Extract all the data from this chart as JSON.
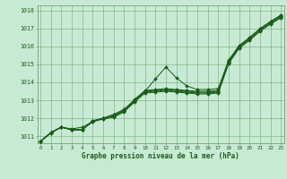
{
  "x_ticks": [
    0,
    1,
    2,
    3,
    4,
    5,
    6,
    7,
    8,
    9,
    10,
    11,
    12,
    13,
    14,
    15,
    16,
    17,
    18,
    19,
    20,
    21,
    22,
    23
  ],
  "xlim": [
    -0.3,
    23.3
  ],
  "ylim": [
    1010.6,
    1018.3
  ],
  "yticks": [
    1011,
    1012,
    1013,
    1014,
    1015,
    1016,
    1017,
    1018
  ],
  "background_color": "#c8ead4",
  "grid_color": "#5a9a5a",
  "line_color": "#1a5c1a",
  "marker": "D",
  "markersize": 2.0,
  "xlabel": "Graphe pression niveau de la mer (hPa)",
  "lines": [
    [
      1010.7,
      1011.2,
      1011.5,
      1011.4,
      1011.5,
      1011.8,
      1012.0,
      1012.2,
      1012.5,
      1013.0,
      1013.5,
      1014.2,
      1014.85,
      1014.25,
      1013.8,
      1013.6,
      1013.6,
      1013.65,
      1015.25,
      1016.05,
      1016.5,
      1017.0,
      1017.4,
      1017.75
    ],
    [
      1010.7,
      1011.2,
      1011.5,
      1011.35,
      1011.35,
      1011.85,
      1012.0,
      1012.2,
      1012.45,
      1013.05,
      1013.55,
      1013.6,
      1013.65,
      1013.6,
      1013.55,
      1013.5,
      1013.5,
      1013.55,
      1015.2,
      1016.05,
      1016.5,
      1017.0,
      1017.4,
      1017.75
    ],
    [
      1010.7,
      1011.2,
      1011.5,
      1011.35,
      1011.35,
      1011.85,
      1012.0,
      1012.15,
      1012.4,
      1013.0,
      1013.5,
      1013.55,
      1013.6,
      1013.55,
      1013.5,
      1013.45,
      1013.45,
      1013.5,
      1015.15,
      1016.0,
      1016.45,
      1016.95,
      1017.35,
      1017.7
    ],
    [
      1010.7,
      1011.2,
      1011.5,
      1011.35,
      1011.35,
      1011.85,
      1011.95,
      1012.1,
      1012.4,
      1012.95,
      1013.45,
      1013.5,
      1013.55,
      1013.5,
      1013.45,
      1013.4,
      1013.4,
      1013.45,
      1015.1,
      1015.95,
      1016.4,
      1016.9,
      1017.3,
      1017.65
    ],
    [
      1010.7,
      1011.15,
      1011.5,
      1011.35,
      1011.35,
      1011.8,
      1011.95,
      1012.05,
      1012.35,
      1012.9,
      1013.4,
      1013.45,
      1013.5,
      1013.45,
      1013.4,
      1013.35,
      1013.35,
      1013.4,
      1015.05,
      1015.9,
      1016.35,
      1016.85,
      1017.25,
      1017.6
    ]
  ],
  "figsize": [
    3.2,
    2.0
  ],
  "dpi": 100
}
